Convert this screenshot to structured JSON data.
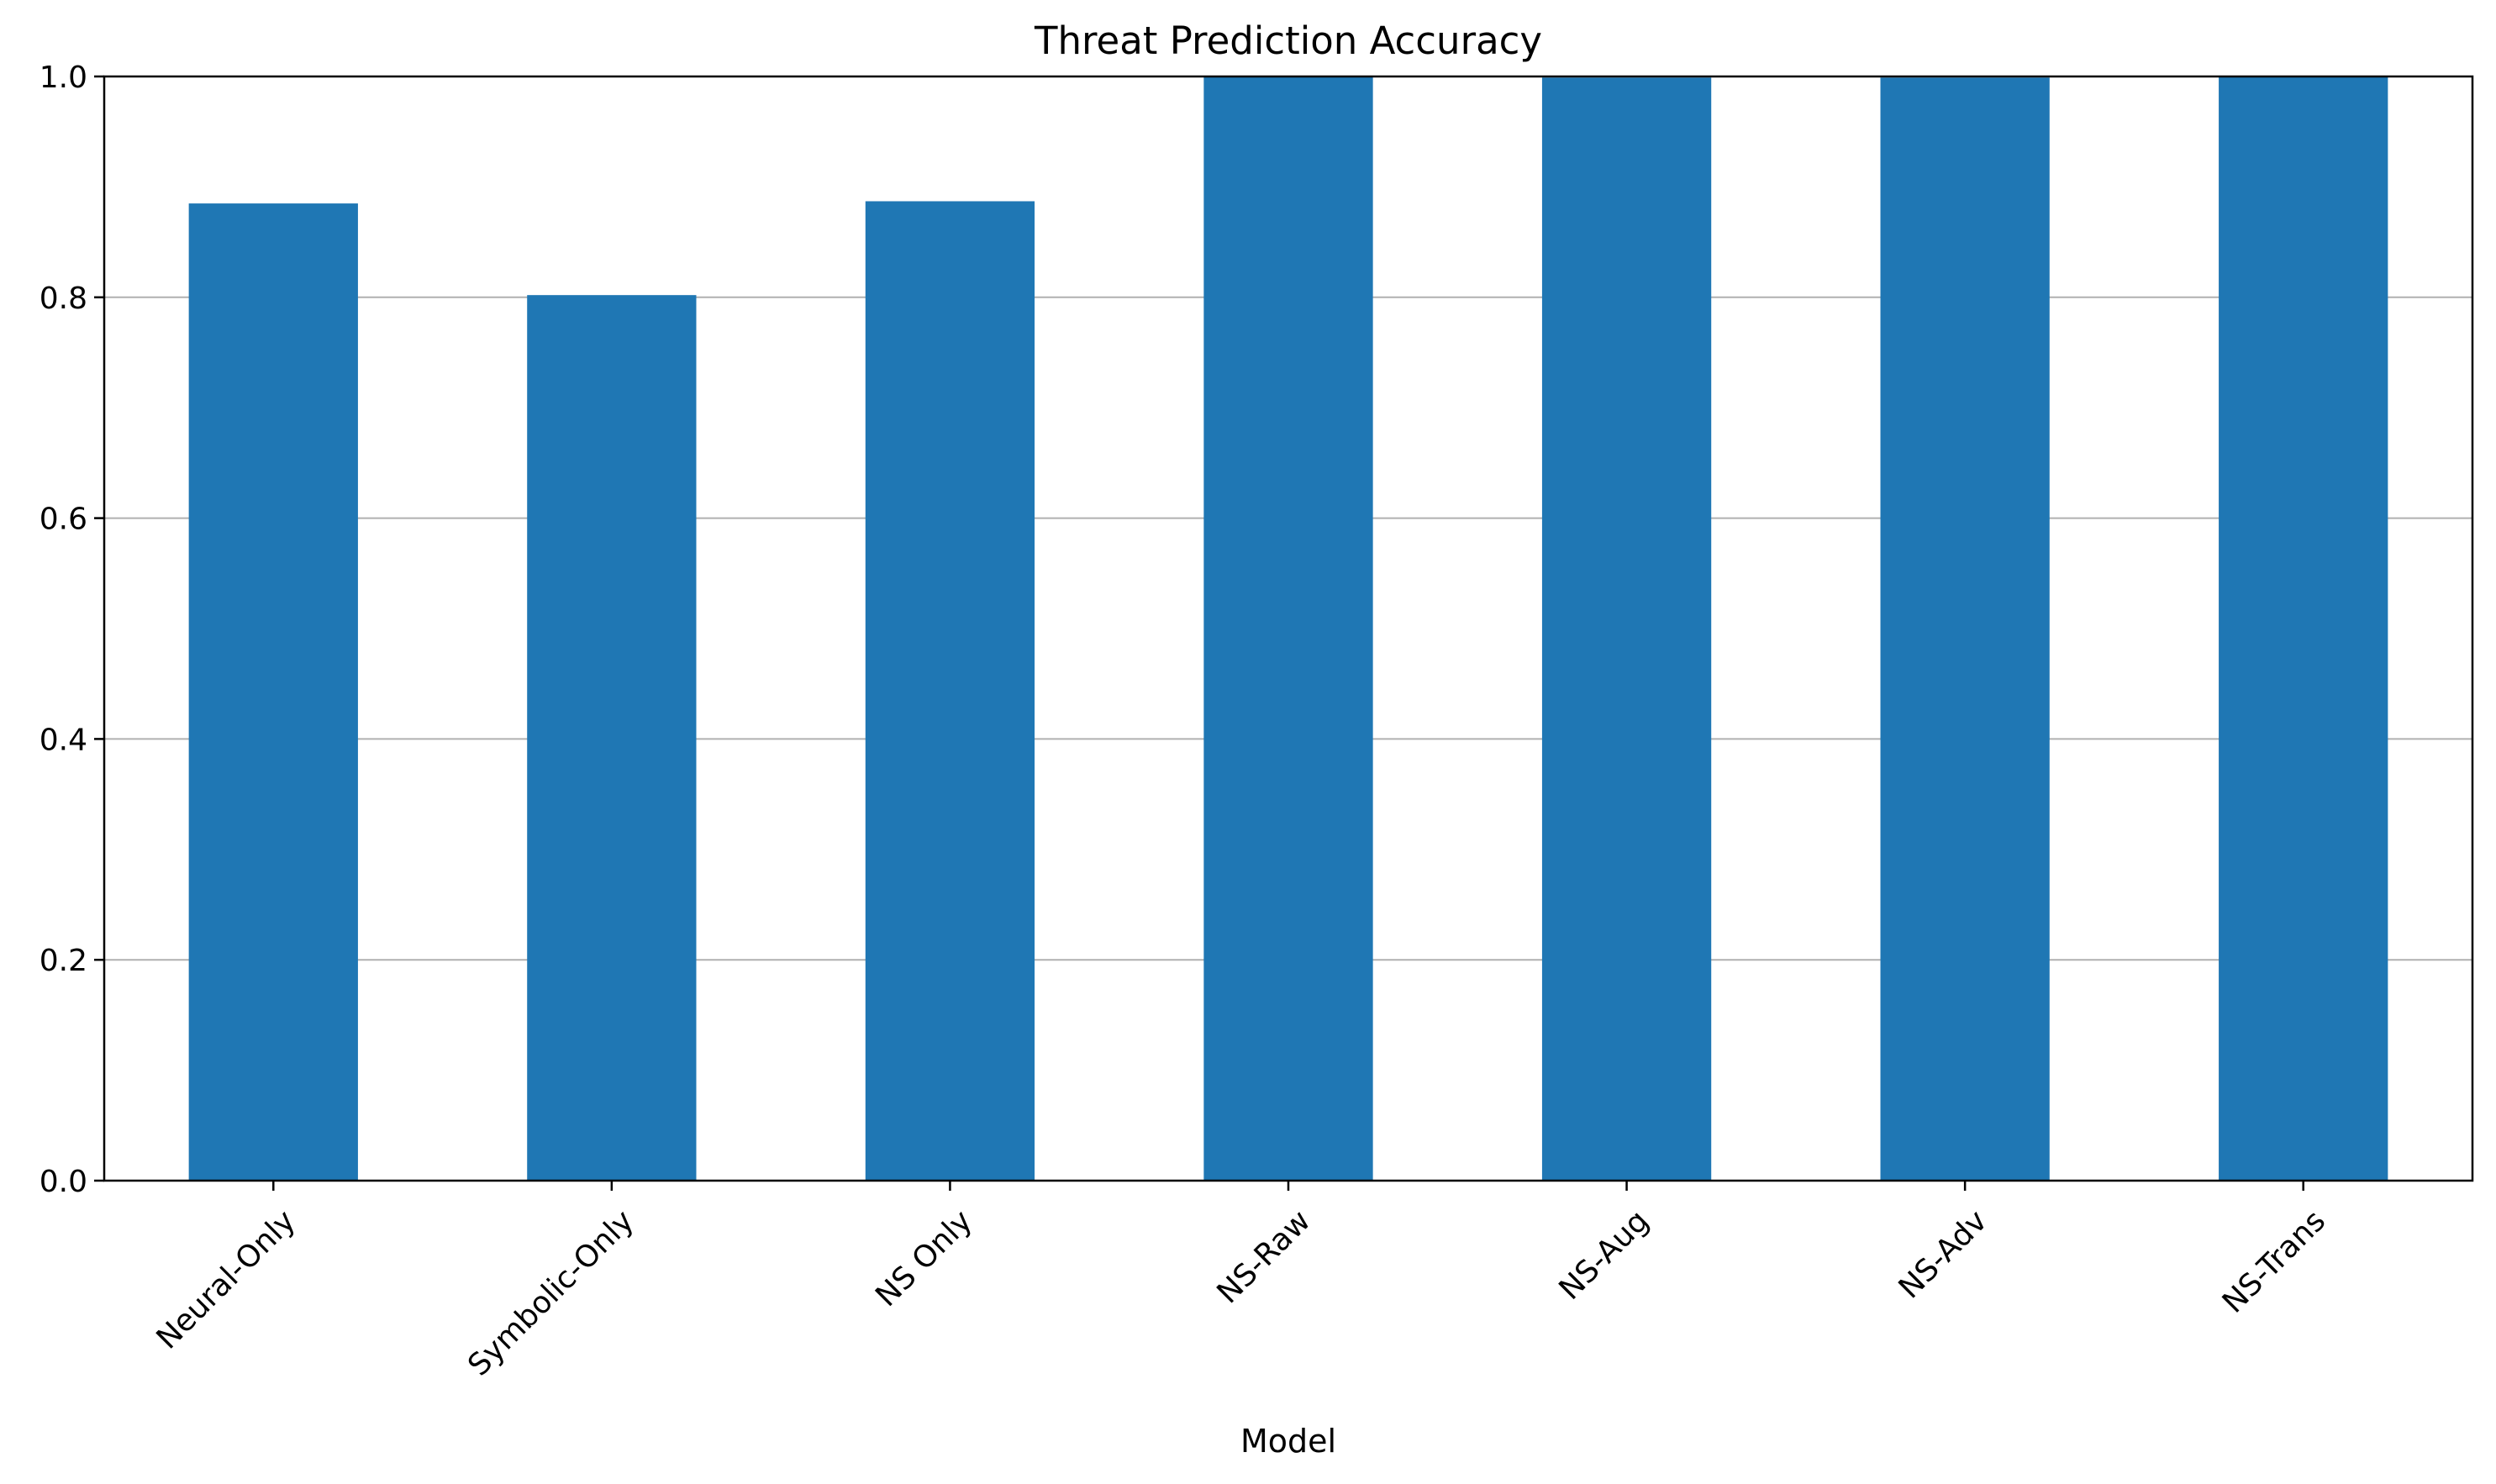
{
  "chart_data": {
    "type": "bar",
    "title": "Threat Prediction Accuracy",
    "xlabel": "Model",
    "ylabel": "",
    "categories": [
      "Neural-Only",
      "Symbolic-Only",
      "NS Only",
      "NS-Raw",
      "NS-Aug",
      "NS-Adv",
      "NS-Trans"
    ],
    "values": [
      0.885,
      0.802,
      0.887,
      1.0,
      0.999,
      0.999,
      1.0
    ],
    "ylim": [
      0,
      1.0
    ],
    "yticks": [
      "0.0",
      "0.2",
      "0.4",
      "0.6",
      "0.8",
      "1.0"
    ],
    "grid": "horizontal",
    "bar_color": "#1f77b4",
    "grid_color": "#b0b0b0"
  }
}
